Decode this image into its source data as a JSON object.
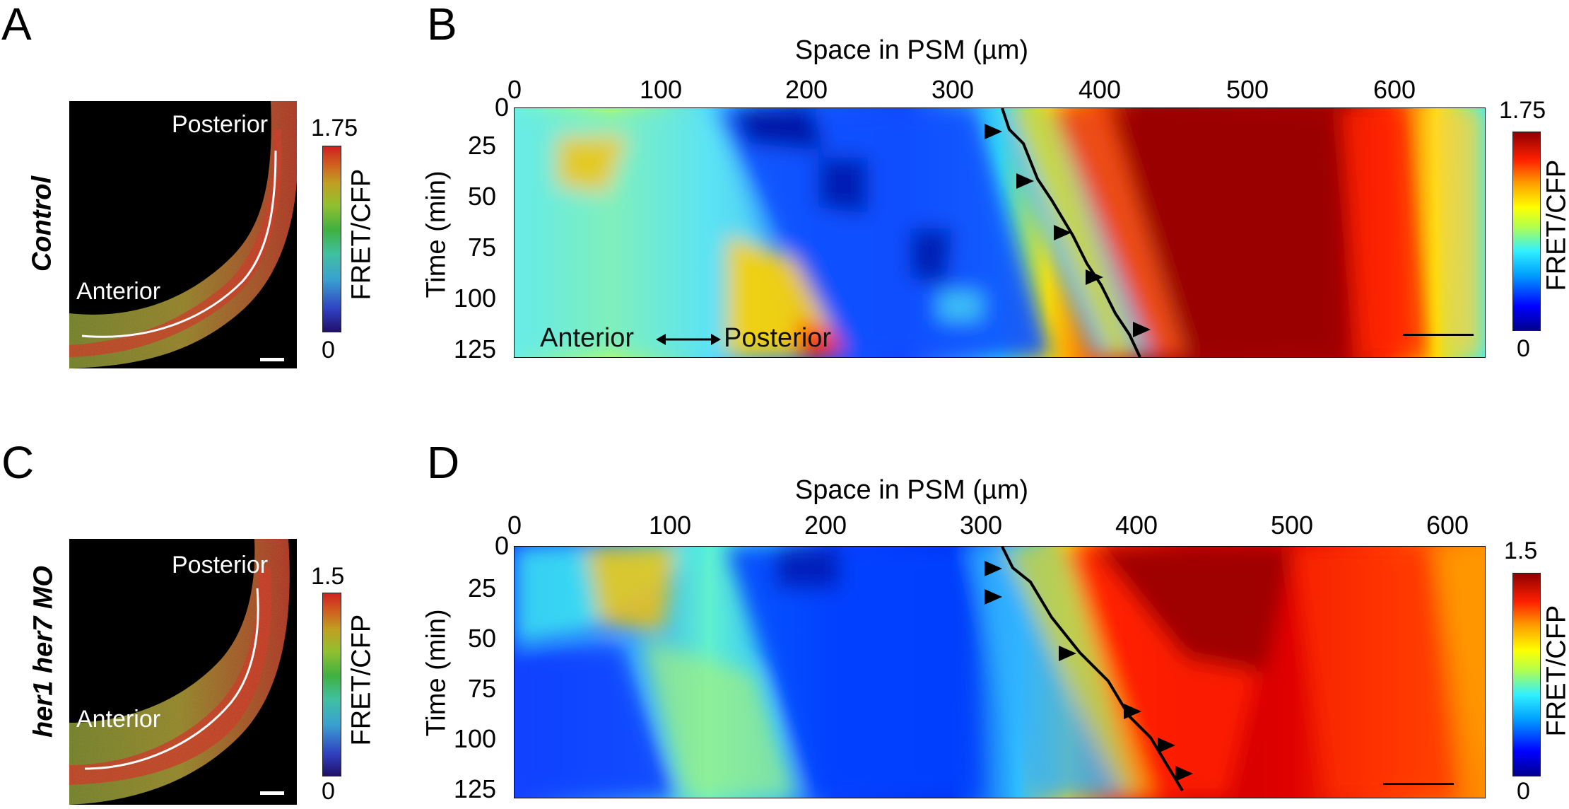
{
  "panels": {
    "A": {
      "letter": "A",
      "row_label": "Control",
      "posterior": "Posterior",
      "anterior": "Anterior",
      "colorbar": {
        "max": "1.75",
        "min": "0",
        "label": "FRET/CFP"
      }
    },
    "B": {
      "letter": "B",
      "x_title": "Space in PSM (µm)",
      "y_title": "Time (min)",
      "x_ticks": [
        "0",
        "100",
        "200",
        "300",
        "400",
        "500",
        "600"
      ],
      "y_ticks": [
        "0",
        "25",
        "50",
        "75",
        "100",
        "125"
      ],
      "annotation_left": "Anterior",
      "annotation_right": "Posterior",
      "colorbar": {
        "max": "1.75",
        "min": "0",
        "label": "FRET/CFP"
      }
    },
    "C": {
      "letter": "C",
      "row_label": "her1 her7 MO",
      "posterior": "Posterior",
      "anterior": "Anterior",
      "colorbar": {
        "max": "1.5",
        "min": "0",
        "label": "FRET/CFP"
      }
    },
    "D": {
      "letter": "D",
      "x_title": "Space in PSM (µm)",
      "y_title": "Time (min)",
      "x_ticks": [
        "0",
        "100",
        "200",
        "300",
        "400",
        "500",
        "600"
      ],
      "y_ticks": [
        "0",
        "25",
        "50",
        "75",
        "100",
        "125"
      ],
      "colorbar": {
        "max": "1.5",
        "min": "0",
        "label": "FRET/CFP"
      }
    }
  },
  "colors": {
    "jet": [
      "#00008f",
      "#0000ff",
      "#00a0ff",
      "#30f0ff",
      "#b0ff50",
      "#ffff00",
      "#ffa000",
      "#ff2000",
      "#8f0000"
    ],
    "fret_lut": [
      "#20106a",
      "#3040c0",
      "#3aa0d0",
      "#40c0a0",
      "#40b040",
      "#90c030",
      "#c0a020",
      "#d06020",
      "#d02020"
    ],
    "wave_line": "#000000",
    "arrowhead": "#000000"
  },
  "icons": {
    "arrow": "double-headed-arrow-icon",
    "arrowhead": "triangle-arrowhead-icon"
  }
}
